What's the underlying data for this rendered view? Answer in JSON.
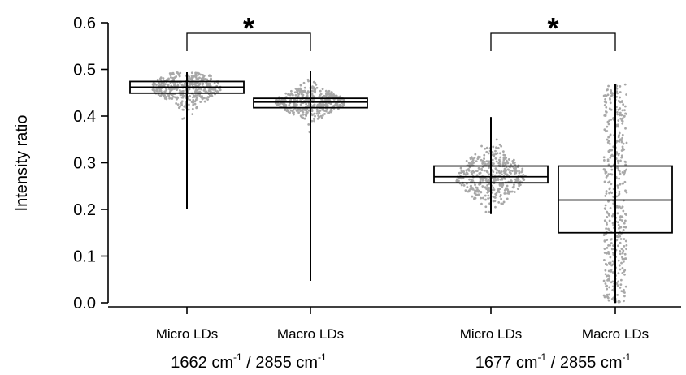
{
  "chart_data": {
    "type": "box",
    "ylabel": "Intensity ratio",
    "ylim": [
      0.0,
      0.6
    ],
    "yticks": [
      "0.0",
      "0.1",
      "0.2",
      "0.3",
      "0.4",
      "0.5",
      "0.6"
    ],
    "categories": [
      "Micro LDs",
      "Macro LDs",
      "Micro LDs",
      "Macro LDs"
    ],
    "groups": [
      {
        "label_main1": "1662 cm",
        "sup1": "-1",
        "label_mid": " / 2855 cm",
        "sup2": "-1",
        "categories": [
          0,
          1
        ]
      },
      {
        "label_main1": "1677 cm",
        "sup1": "-1",
        "label_mid": " / 2855 cm",
        "sup2": "-1",
        "categories": [
          2,
          3
        ]
      }
    ],
    "boxes": [
      {
        "category": "Micro LDs",
        "whisker_low": 0.2,
        "q1": 0.449,
        "median": 0.462,
        "q3": 0.474,
        "whisker_high": 0.494
      },
      {
        "category": "Macro LDs",
        "whisker_low": 0.047,
        "q1": 0.418,
        "median": 0.43,
        "q3": 0.438,
        "whisker_high": 0.497
      },
      {
        "category": "Micro LDs",
        "whisker_low": 0.19,
        "q1": 0.257,
        "median": 0.27,
        "q3": 0.293,
        "whisker_high": 0.398
      },
      {
        "category": "Macro LDs",
        "whisker_low": 0.0,
        "q1": 0.15,
        "median": 0.22,
        "q3": 0.293,
        "whisker_high": 0.468
      }
    ],
    "significance": [
      {
        "from": 0,
        "to": 1,
        "y": 0.575,
        "label": "*"
      },
      {
        "from": 2,
        "to": 3,
        "y": 0.575,
        "label": "*"
      }
    ],
    "point_color": "#a8a8a8",
    "line_color": "#000000"
  }
}
